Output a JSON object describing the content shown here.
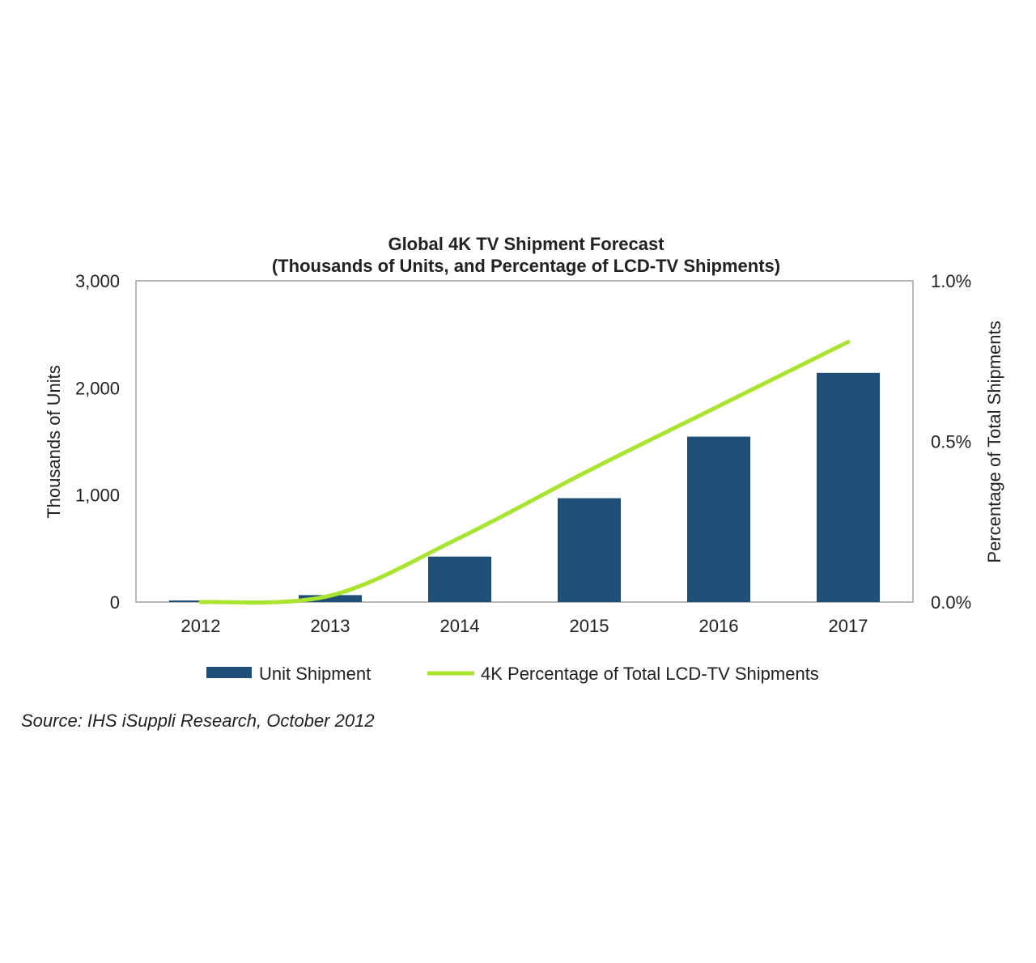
{
  "chart_data": {
    "type": "bar",
    "title": "Global 4K TV Shipment Forecast",
    "subtitle": "(Thousands of Units, and Percentage of LCD-TV Shipments)",
    "categories": [
      "2012",
      "2013",
      "2014",
      "2015",
      "2016",
      "2017"
    ],
    "ylabel": "Thousands of Units",
    "y2label": "Percentage of Total Shipments",
    "ylim": [
      0,
      3000
    ],
    "y2lim": [
      0,
      1.0
    ],
    "yticks": [
      "0",
      "1,000",
      "2,000",
      "3,000"
    ],
    "yticks_values": [
      0,
      1000,
      2000,
      3000
    ],
    "y2ticks": [
      "0.0%",
      "0.5%",
      "1.0%"
    ],
    "y2ticks_values": [
      0,
      0.5,
      1.0
    ],
    "grid": false,
    "legend_position": "bottom",
    "series": [
      {
        "name": "Unit Shipment",
        "type": "bar",
        "axis": "left",
        "color": "#1f4e79",
        "values": [
          15,
          65,
          425,
          970,
          1545,
          2140
        ]
      },
      {
        "name": "4K Percentage of Total LCD-TV Shipments",
        "type": "line",
        "axis": "right",
        "color": "#a9e52e",
        "values": [
          0.0,
          0.02,
          0.2,
          0.41,
          0.61,
          0.81
        ]
      }
    ],
    "source": "Source: IHS iSuppli Research, October 2012"
  }
}
